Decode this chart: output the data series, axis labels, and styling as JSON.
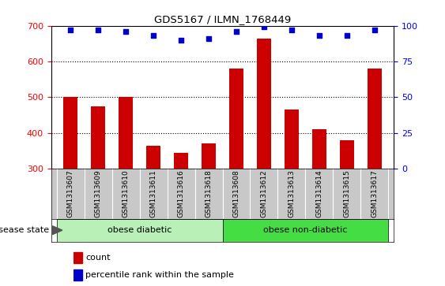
{
  "title": "GDS5167 / ILMN_1768449",
  "samples": [
    "GSM1313607",
    "GSM1313609",
    "GSM1313610",
    "GSM1313611",
    "GSM1313616",
    "GSM1313618",
    "GSM1313608",
    "GSM1313612",
    "GSM1313613",
    "GSM1313614",
    "GSM1313615",
    "GSM1313617"
  ],
  "counts": [
    500,
    475,
    500,
    365,
    345,
    370,
    580,
    665,
    465,
    410,
    380,
    580
  ],
  "percentile_ranks": [
    97,
    97,
    96,
    93,
    90,
    91,
    96,
    99,
    97,
    93,
    93,
    97
  ],
  "ylim_left": [
    300,
    700
  ],
  "ylim_right": [
    0,
    100
  ],
  "yticks_left": [
    300,
    400,
    500,
    600,
    700
  ],
  "yticks_right": [
    0,
    25,
    50,
    75,
    100
  ],
  "groups": [
    {
      "label": "obese diabetic",
      "start": 0,
      "end": 6
    },
    {
      "label": "obese non-diabetic",
      "start": 6,
      "end": 12
    }
  ],
  "bar_color": "#cc0000",
  "dot_color": "#0000cc",
  "bar_width": 0.5,
  "disease_state_label": "disease state",
  "legend_count_label": "count",
  "legend_percentile_label": "percentile rank within the sample",
  "tick_area_bg": "#c8c8c8",
  "group1_color": "#b8f0b8",
  "group2_color": "#44dd44",
  "grid_yticks": [
    400,
    500,
    600
  ]
}
